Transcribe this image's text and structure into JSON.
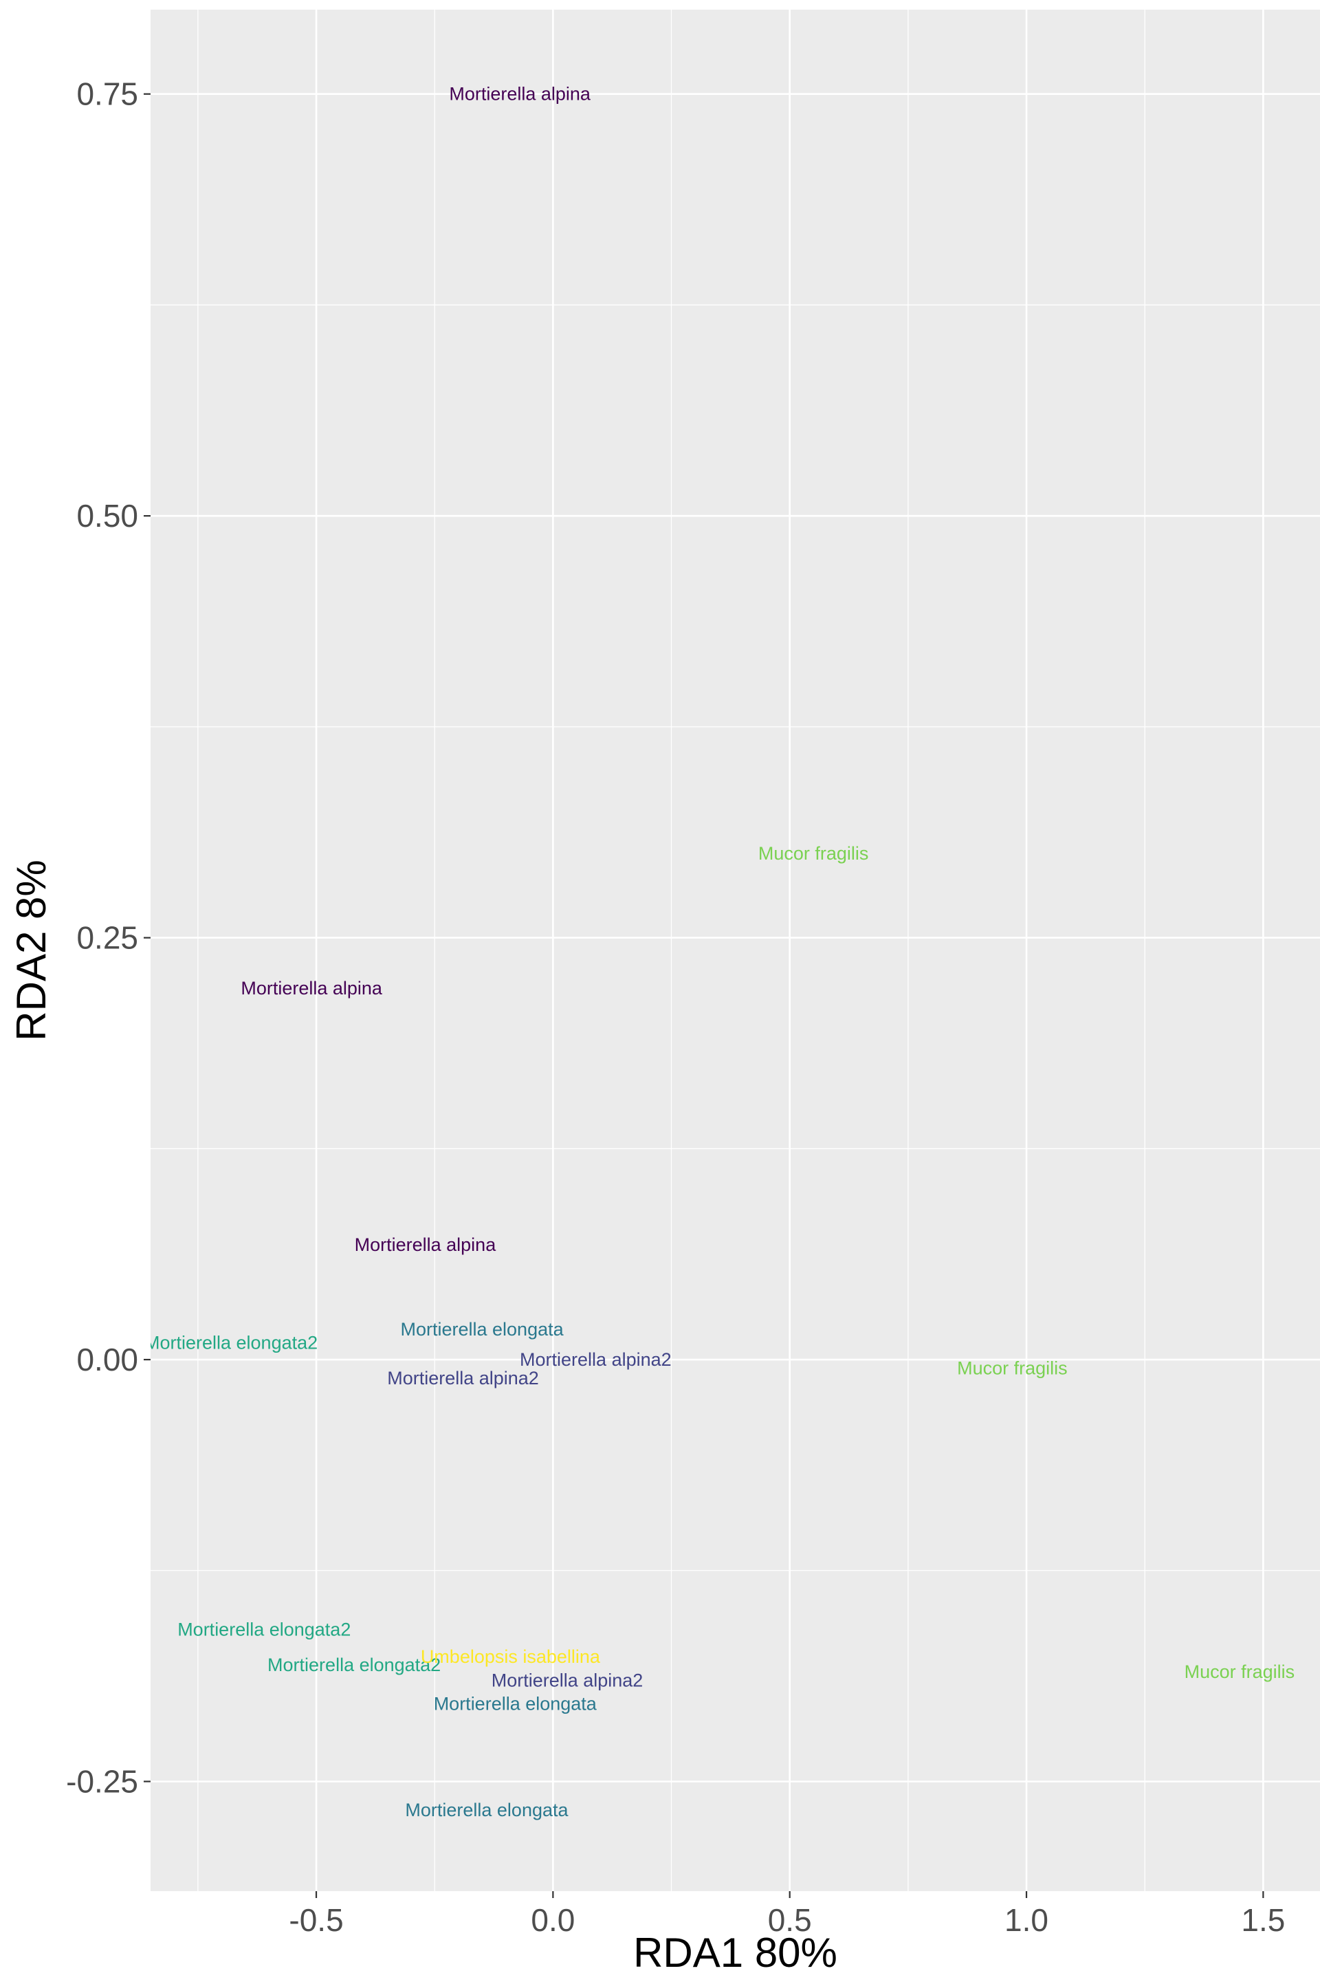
{
  "chart_data": {
    "type": "scatter",
    "xlabel": "RDA1 80%",
    "ylabel": "RDA2 8%",
    "xlim": [
      -0.85,
      1.62
    ],
    "ylim": [
      -0.315,
      0.8
    ],
    "x_ticks": [
      -0.5,
      0.0,
      0.5,
      1.0,
      1.5
    ],
    "x_tick_labels": [
      "-0.5",
      "0.0",
      "0.5",
      "1.0",
      "1.5"
    ],
    "x_minor_ticks": [
      -0.75,
      -0.25,
      0.25,
      0.75,
      1.25
    ],
    "y_ticks": [
      -0.25,
      0.0,
      0.25,
      0.5,
      0.75
    ],
    "y_tick_labels": [
      "-0.25",
      "0.00",
      "0.25",
      "0.50",
      "0.75"
    ],
    "y_minor_ticks": [
      -0.125,
      0.125,
      0.375,
      0.625
    ],
    "grid": true,
    "legend": "none",
    "colors": {
      "panel_background": "#EBEBEB",
      "grid": "#FFFFFF",
      "tick_label": "#4D4D4D"
    },
    "points": [
      {
        "x": -0.07,
        "y": 0.75,
        "label": "Mortierella alpina",
        "color": "#440154"
      },
      {
        "x": -0.51,
        "y": 0.22,
        "label": "Mortierella alpina",
        "color": "#440154"
      },
      {
        "x": -0.27,
        "y": 0.068,
        "label": "Mortierella alpina",
        "color": "#440154"
      },
      {
        "x": 0.55,
        "y": 0.3,
        "label": "Mucor fragilis",
        "color": "#7AD151"
      },
      {
        "x": 0.97,
        "y": -0.005,
        "label": "Mucor fragilis",
        "color": "#7AD151"
      },
      {
        "x": 1.45,
        "y": -0.185,
        "label": "Mucor fragilis",
        "color": "#7AD151"
      },
      {
        "x": -0.68,
        "y": 0.01,
        "label": "Mortierella elongata2",
        "color": "#22A884"
      },
      {
        "x": -0.15,
        "y": 0.018,
        "label": "Mortierella elongata",
        "color": "#2A788E"
      },
      {
        "x": 0.09,
        "y": 0.0,
        "label": "Mortierella alpina2",
        "color": "#414487"
      },
      {
        "x": -0.19,
        "y": -0.011,
        "label": "Mortierella alpina2",
        "color": "#414487"
      },
      {
        "x": -0.61,
        "y": -0.16,
        "label": "Mortierella elongata2",
        "color": "#22A884"
      },
      {
        "x": -0.42,
        "y": -0.181,
        "label": "Mortierella elongata2",
        "color": "#22A884"
      },
      {
        "x": -0.09,
        "y": -0.176,
        "label": "Umbelopsis isabellina",
        "color": "#FDE725"
      },
      {
        "x": 0.03,
        "y": -0.19,
        "label": "Mortierella alpina2",
        "color": "#414487"
      },
      {
        "x": -0.08,
        "y": -0.204,
        "label": "Mortierella elongata",
        "color": "#2A788E"
      },
      {
        "x": -0.14,
        "y": -0.267,
        "label": "Mortierella elongata",
        "color": "#2A788E"
      }
    ]
  }
}
